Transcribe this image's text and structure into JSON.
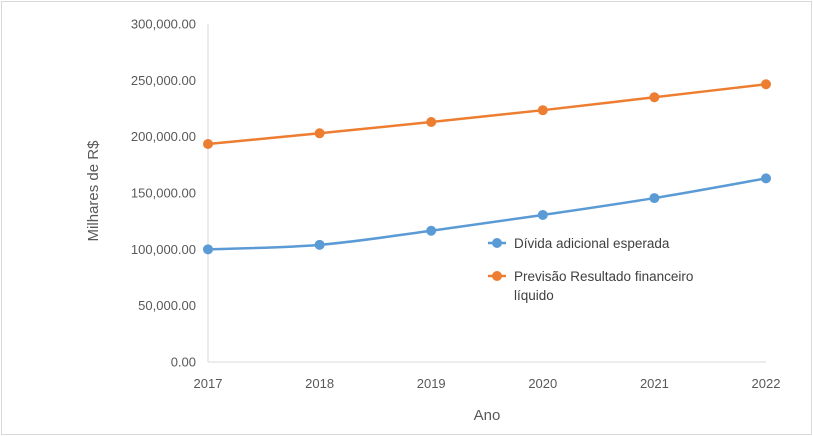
{
  "chart_data": {
    "type": "line",
    "title": "",
    "xlabel": "Ano",
    "ylabel": "Milhares de R$",
    "x": [
      "2017",
      "2018",
      "2019",
      "2020",
      "2021",
      "2022"
    ],
    "ylim": [
      0,
      300000
    ],
    "y_ticks": [
      0,
      50000,
      100000,
      150000,
      200000,
      250000,
      300000
    ],
    "y_tick_labels": [
      "0.00",
      "50,000.00",
      "100,000.00",
      "150,000.00",
      "200,000.00",
      "250,000.00",
      "300,000.00"
    ],
    "grid": false,
    "legend_position": "right",
    "series": [
      {
        "name": "Dívida adicional esperada",
        "color": "#5B9BD5",
        "values": [
          100000,
          104000,
          116500,
          130500,
          145500,
          163000
        ]
      },
      {
        "name": "Previsão Resultado financeiro líquido",
        "name_lines": [
          "Previsão Resultado financeiro",
          "líquido"
        ],
        "color": "#ED7D31",
        "values": [
          193500,
          203000,
          213000,
          223500,
          235000,
          246500
        ]
      }
    ]
  }
}
